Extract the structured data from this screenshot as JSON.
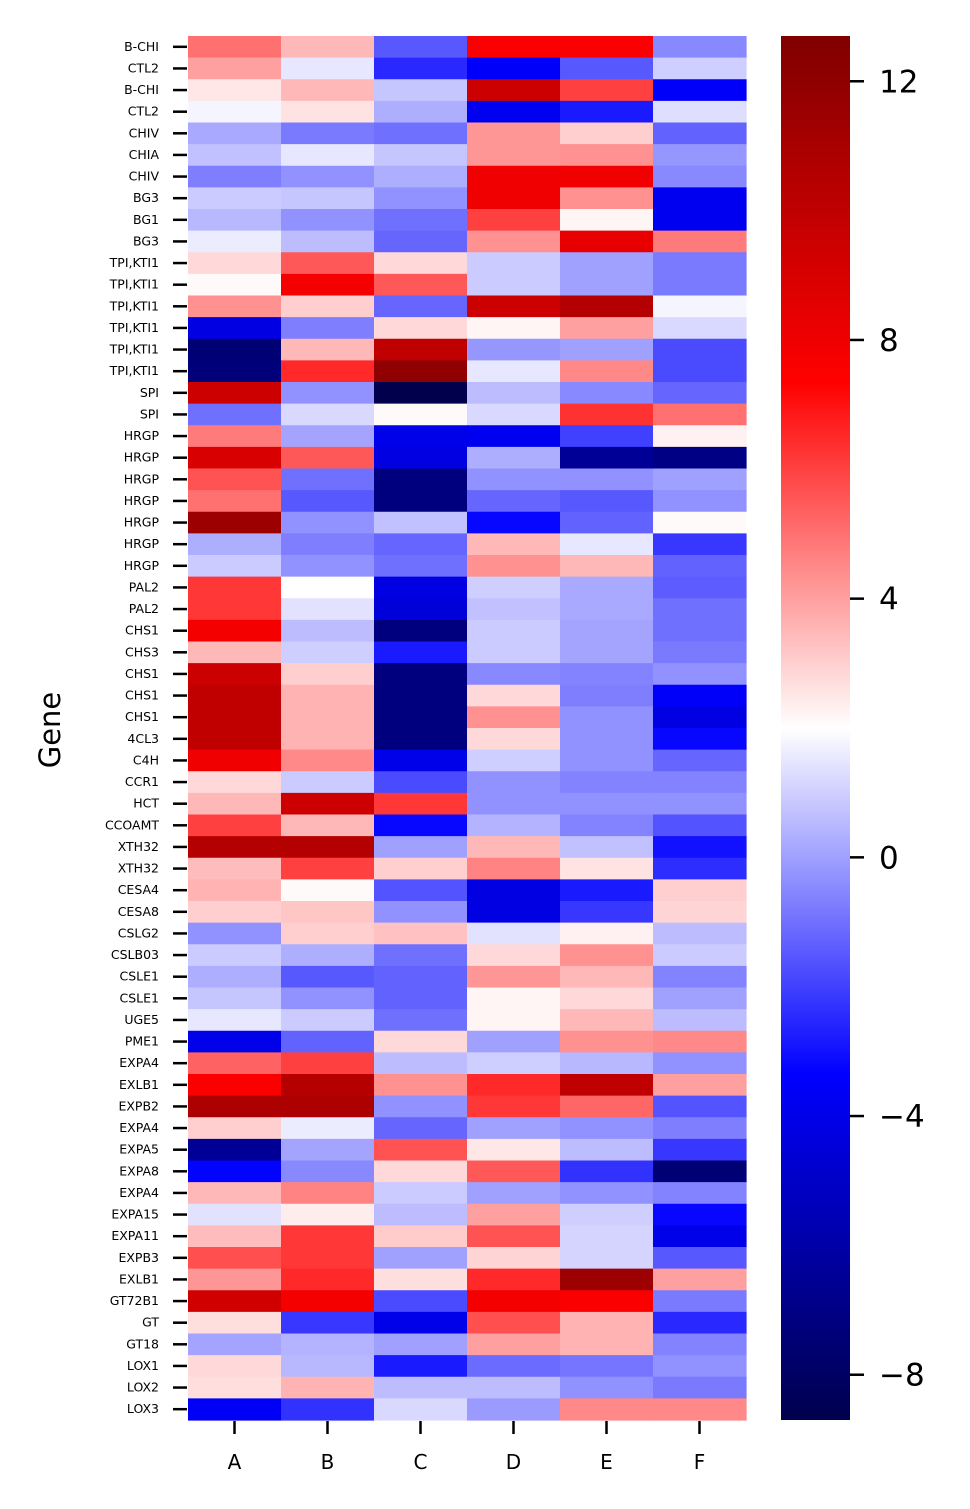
{
  "chart_data": {
    "type": "heatmap",
    "title": "",
    "xlabel": "",
    "ylabel": "Gene",
    "colormap": "seismic",
    "color_range": [
      -8.7,
      12.7
    ],
    "colorbar_ticks": [
      12,
      8,
      4,
      0,
      -4,
      -8
    ],
    "colorbar_tick_labels": [
      "12",
      "8",
      "4",
      "0",
      "−4",
      "−8"
    ],
    "columns": [
      "A",
      "B",
      "C",
      "D",
      "E",
      "F"
    ],
    "rows": [
      "B-CHI",
      "CTL2",
      "B-CHI",
      "CTL2",
      "CHIV",
      "CHIA",
      "CHIV",
      "BG3",
      "BG1",
      "BG3",
      "TPI,KTI1",
      "TPI,KTI1",
      "TPI,KTI1",
      "TPI,KTI1",
      "TPI,KTI1",
      "TPI,KTI1",
      "SPI",
      "SPI",
      "HRGP",
      "HRGP",
      "HRGP",
      "HRGP",
      "HRGP",
      "HRGP",
      "HRGP",
      "PAL2",
      "PAL2",
      "CHS1",
      "CHS3",
      "CHS1",
      "CHS1",
      "CHS1",
      "4CL3",
      "C4H",
      "CCR1",
      "HCT",
      "CCOAMT",
      "XTH32",
      "XTH32",
      "CESA4",
      "CESA8",
      "CSLG2",
      "CSLB03",
      "CSLE1",
      "CSLE1",
      "UGE5",
      "PME1",
      "EXPA4",
      "EXLB1",
      "EXPB2",
      "EXPA4",
      "EXPA5",
      "EXPA8",
      "EXPA4",
      "EXPA15",
      "EXPA11",
      "EXPB3",
      "EXLB1",
      "GT72B1",
      "GT",
      "GT18",
      "LOX1",
      "LOX2",
      "LOX3"
    ],
    "values": [
      [
        5,
        3.5,
        -1.5,
        7.5,
        7.5,
        -0.5
      ],
      [
        4,
        1.5,
        -2.5,
        -3.5,
        -1.5,
        1
      ],
      [
        2.5,
        3.5,
        0.8,
        9.5,
        6,
        -3.5
      ],
      [
        1.8,
        2.6,
        0.3,
        -3.8,
        -2.8,
        1.3
      ],
      [
        0.2,
        -0.8,
        -1,
        4.2,
        3,
        -1.3
      ],
      [
        0.7,
        1.5,
        0.8,
        4.2,
        4.3,
        -0.2
      ],
      [
        -0.7,
        -0.3,
        0.3,
        8,
        8,
        -0.5
      ],
      [
        0.9,
        0.8,
        -0.3,
        8,
        4.3,
        -3.8
      ],
      [
        0.5,
        -0.3,
        -1,
        6,
        2.2,
        -3.8
      ],
      [
        1.6,
        0.6,
        -1.2,
        4.3,
        8.3,
        4.8
      ],
      [
        2.8,
        5.5,
        2.8,
        0.9,
        0,
        -0.8
      ],
      [
        2.1,
        7.8,
        5.5,
        0.9,
        0,
        -0.8
      ],
      [
        4.3,
        3,
        -1.2,
        9.5,
        10.5,
        1.8
      ],
      [
        -4.2,
        -0.7,
        2.8,
        2.2,
        4,
        1.2
      ],
      [
        -7.5,
        3.5,
        10,
        -0.2,
        0,
        -1.8
      ],
      [
        -7.3,
        6.5,
        12,
        1.5,
        4.5,
        -1.8
      ],
      [
        9.5,
        -0.3,
        -8.7,
        0.6,
        -0.5,
        -1.2
      ],
      [
        -1,
        1.2,
        2.1,
        1.2,
        6.3,
        5
      ],
      [
        4.8,
        0.1,
        -4,
        -3.8,
        -2,
        2.3
      ],
      [
        9,
        5.5,
        -4.2,
        0.3,
        -6.5,
        -7
      ],
      [
        5.6,
        -1,
        -7.2,
        -0.3,
        -0.3,
        0
      ],
      [
        5,
        -1.5,
        -7.2,
        -1.2,
        -1.5,
        -0.3
      ],
      [
        11.5,
        -0.3,
        0.7,
        -3.2,
        -1.3,
        2.1
      ],
      [
        0.3,
        -0.7,
        -1.2,
        3.5,
        1.5,
        -2.2
      ],
      [
        0.9,
        -0.3,
        -1,
        4.3,
        3.5,
        -1.3
      ],
      [
        6.2,
        2,
        -4.2,
        1,
        0.2,
        -1.4
      ],
      [
        6.2,
        1.4,
        -4.5,
        0.7,
        0.2,
        -1
      ],
      [
        7.8,
        0.6,
        -7.2,
        0.9,
        0.1,
        -1
      ],
      [
        3.5,
        1,
        -2.8,
        0.9,
        0.1,
        -0.8
      ],
      [
        9.5,
        3,
        -7.2,
        -0.5,
        -0.6,
        -0.3
      ],
      [
        10,
        3.6,
        -7.2,
        2.8,
        -0.7,
        -3.5
      ],
      [
        10,
        3.6,
        -7.2,
        4.3,
        -0.3,
        -4.2
      ],
      [
        10,
        3.6,
        -7.2,
        2.8,
        -0.3,
        -3.2
      ],
      [
        8,
        4.5,
        -4,
        1,
        -0.3,
        -1.2
      ],
      [
        2.8,
        0.9,
        -1.8,
        -0.3,
        -0.6,
        -0.6
      ],
      [
        3.5,
        9.5,
        6.2,
        -0.3,
        -0.3,
        -0.3
      ],
      [
        6,
        3.5,
        -3.2,
        0.4,
        -0.6,
        -1.6
      ],
      [
        10.5,
        10.5,
        0,
        3.5,
        0.7,
        -3
      ],
      [
        3.4,
        6,
        3,
        4.6,
        2.6,
        -2.4
      ],
      [
        3.6,
        2.1,
        -1.6,
        -4.2,
        -2.8,
        3
      ],
      [
        3,
        3.2,
        -0.3,
        -4.2,
        -2.2,
        2.9
      ],
      [
        -0.3,
        3,
        3.3,
        1.4,
        2.3,
        0.6
      ],
      [
        0.9,
        0.3,
        -1,
        2.8,
        4.3,
        0.9
      ],
      [
        0.3,
        -1.5,
        -1.3,
        4.2,
        3.5,
        -0.6
      ],
      [
        0.8,
        -0.3,
        -1.3,
        2.2,
        2.8,
        0
      ],
      [
        1.5,
        0.9,
        -1,
        2.2,
        3.5,
        0.6
      ],
      [
        -4,
        -1.3,
        2.8,
        0,
        4.3,
        4.5
      ],
      [
        5.3,
        6,
        0.6,
        1,
        0.5,
        -0.3
      ],
      [
        7.5,
        10.5,
        4.3,
        6.5,
        10,
        4
      ],
      [
        10.8,
        10.8,
        -0.3,
        6.2,
        5.2,
        -1.6
      ],
      [
        3,
        1.6,
        -1.2,
        0,
        -0.3,
        -0.7
      ],
      [
        -6.5,
        0.1,
        5.6,
        2.5,
        0.6,
        -2.2
      ],
      [
        -3.3,
        -0.5,
        2.8,
        5.5,
        -2.3,
        -7.5
      ],
      [
        3.5,
        4.6,
        0.9,
        0,
        -0.3,
        -0.6
      ],
      [
        1.4,
        2.4,
        0.6,
        4,
        1,
        -3.2
      ],
      [
        3.4,
        6.2,
        3.1,
        5.6,
        1.1,
        -4
      ],
      [
        5.7,
        6.2,
        0,
        2.9,
        1.1,
        -1.5
      ],
      [
        4.2,
        6.5,
        2.7,
        6.5,
        11.5,
        4
      ],
      [
        9.3,
        7.8,
        -1.8,
        7.8,
        7.5,
        -0.8
      ],
      [
        2.7,
        -2.2,
        -4,
        5.7,
        3.6,
        -2.5
      ],
      [
        0.1,
        0.4,
        0,
        4,
        3.6,
        -0.6
      ],
      [
        2.8,
        0.5,
        -2.8,
        -1.1,
        -0.9,
        -0.3
      ],
      [
        2.7,
        3.6,
        0.6,
        0.6,
        -0.3,
        -0.8
      ],
      [
        -3.6,
        -2.3,
        1.2,
        -0.1,
        4.5,
        4.5
      ]
    ]
  }
}
